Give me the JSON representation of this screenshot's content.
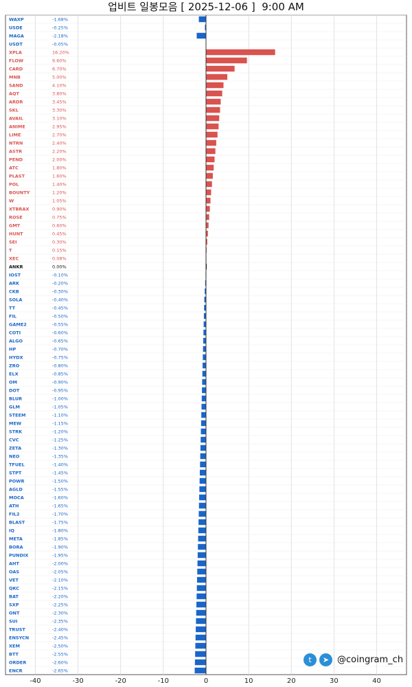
{
  "title": "업비트 일봉모음 [ 2025-12-06 ]  9:00 AM",
  "watermark": {
    "handle": "@coingram_ch",
    "icons": [
      "twitter-icon",
      "telegram-icon"
    ]
  },
  "chart_data": {
    "type": "bar",
    "orientation": "horizontal",
    "title": "업비트 일봉모음 [ 2025-12-06 ]  9:00 AM",
    "xlabel": "",
    "ylabel": "",
    "xlim": [
      -47,
      47
    ],
    "x_ticks": [
      "-40",
      "-30",
      "-20",
      "-10",
      "0",
      "10",
      "20",
      "30",
      "40"
    ],
    "x_tick_values": [
      -40,
      -30,
      -20,
      -10,
      0,
      10,
      20,
      30,
      40
    ],
    "grid": true,
    "colors": {
      "up": "#d9534f",
      "down": "#1a66c8",
      "flat": "#111111",
      "range": "#1a66c8",
      "range_up": "#d9534f"
    },
    "rows": [
      {
        "name": "WAXP",
        "change": -1.68
      },
      {
        "name": "USDE",
        "change": -0.25
      },
      {
        "name": "MAGA",
        "change": -2.18
      },
      {
        "name": "USDT",
        "change": -0.05
      },
      {
        "name": "XPLA",
        "change": 16.2
      },
      {
        "name": "FLOW",
        "change": 9.6
      },
      {
        "name": "CARD",
        "change": 6.7
      },
      {
        "name": "MNB",
        "change": 5.0
      },
      {
        "name": "SAND",
        "change": 4.1
      },
      {
        "name": "AQT",
        "change": 3.8
      },
      {
        "name": "ARDR",
        "change": 3.45
      },
      {
        "name": "SKL",
        "change": 3.3
      },
      {
        "name": "AVAIL",
        "change": 3.1
      },
      {
        "name": "ANIME",
        "change": 2.95
      },
      {
        "name": "LIME",
        "change": 2.7
      },
      {
        "name": "NTRN",
        "change": 2.4
      },
      {
        "name": "ASTR",
        "change": 2.2
      },
      {
        "name": "PEND",
        "change": 2.0
      },
      {
        "name": "ATC",
        "change": 1.8
      },
      {
        "name": "PLAST",
        "change": 1.6
      },
      {
        "name": "POL",
        "change": 1.4
      },
      {
        "name": "BOUNTY",
        "change": 1.2
      },
      {
        "name": "W",
        "change": 1.05
      },
      {
        "name": "XTBRAX",
        "change": 0.9
      },
      {
        "name": "ROSE",
        "change": 0.75
      },
      {
        "name": "GMT",
        "change": 0.6
      },
      {
        "name": "HUNT",
        "change": 0.45
      },
      {
        "name": "SEI",
        "change": 0.3
      },
      {
        "name": "T",
        "change": 0.15
      },
      {
        "name": "XEC",
        "change": 0.08
      },
      {
        "name": "ANKR",
        "change": 0.0
      },
      {
        "name": "IOST",
        "change": -0.1
      },
      {
        "name": "ARK",
        "change": -0.2
      },
      {
        "name": "CKB",
        "change": -0.3
      },
      {
        "name": "SOLA",
        "change": -0.4
      },
      {
        "name": "TT",
        "change": -0.45
      },
      {
        "name": "FIL",
        "change": -0.5
      },
      {
        "name": "GAME2",
        "change": -0.55
      },
      {
        "name": "COTI",
        "change": -0.6
      },
      {
        "name": "ALGO",
        "change": -0.65
      },
      {
        "name": "HP",
        "change": -0.7
      },
      {
        "name": "HYDX",
        "change": -0.75
      },
      {
        "name": "ZRO",
        "change": -0.8
      },
      {
        "name": "ELX",
        "change": -0.85
      },
      {
        "name": "OM",
        "change": -0.9
      },
      {
        "name": "DOT",
        "change": -0.95
      },
      {
        "name": "BLUR",
        "change": -1.0
      },
      {
        "name": "GLM",
        "change": -1.05
      },
      {
        "name": "STEEM",
        "change": -1.1
      },
      {
        "name": "MEW",
        "change": -1.15
      },
      {
        "name": "STRK",
        "change": -1.2
      },
      {
        "name": "CVC",
        "change": -1.25
      },
      {
        "name": "ZETA",
        "change": -1.3
      },
      {
        "name": "NEO",
        "change": -1.35
      },
      {
        "name": "TFUEL",
        "change": -1.4
      },
      {
        "name": "STPT",
        "change": -1.45
      },
      {
        "name": "POWR",
        "change": -1.5
      },
      {
        "name": "AGLD",
        "change": -1.55
      },
      {
        "name": "MOCA",
        "change": -1.6
      },
      {
        "name": "ATH",
        "change": -1.65
      },
      {
        "name": "FIL2",
        "change": -1.7
      },
      {
        "name": "BLAST",
        "change": -1.75
      },
      {
        "name": "IQ",
        "change": -1.8
      },
      {
        "name": "META",
        "change": -1.85
      },
      {
        "name": "BORA",
        "change": -1.9
      },
      {
        "name": "PUNDIX",
        "change": -1.95
      },
      {
        "name": "AHT",
        "change": -2.0
      },
      {
        "name": "OAS",
        "change": -2.05
      },
      {
        "name": "VET",
        "change": -2.1
      },
      {
        "name": "QKC",
        "change": -2.15
      },
      {
        "name": "BAT",
        "change": -2.2
      },
      {
        "name": "SXP",
        "change": -2.25
      },
      {
        "name": "ONT",
        "change": -2.3
      },
      {
        "name": "SUI",
        "change": -2.35
      },
      {
        "name": "TRUST",
        "change": -2.4
      },
      {
        "name": "ENSYCN",
        "change": -2.45
      },
      {
        "name": "XEM",
        "change": -2.5
      },
      {
        "name": "BTT",
        "change": -2.55
      },
      {
        "name": "ORDER",
        "change": -2.6
      },
      {
        "name": "ENCR",
        "change": -2.65
      }
    ]
  }
}
